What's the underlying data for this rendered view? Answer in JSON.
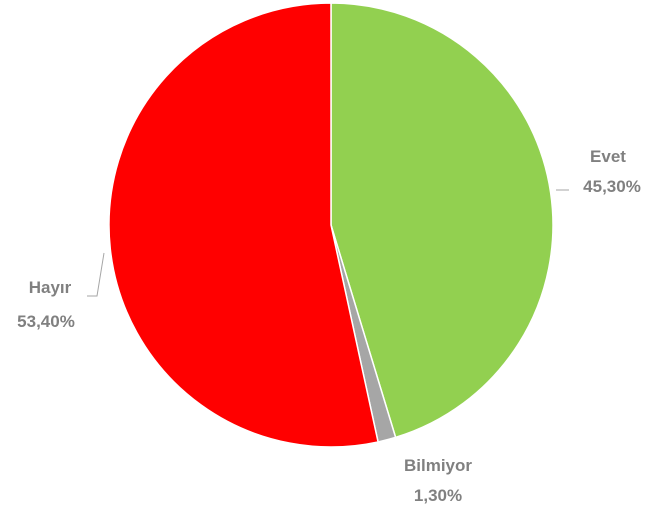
{
  "chart_data": {
    "type": "pie",
    "title": "",
    "slices": [
      {
        "name": "Evet",
        "value": 45.3,
        "label": "45,30%",
        "color": "#92d050"
      },
      {
        "name": "Bilmiyor",
        "value": 1.3,
        "label": "1,30%",
        "color": "#a6a6a6"
      },
      {
        "name": "Hayır",
        "value": 53.4,
        "label": "53,40%",
        "color": "#ff0000"
      }
    ],
    "start_angle_deg": 0,
    "direction": "clockwise",
    "legend": "none",
    "label_color": "#808080"
  }
}
